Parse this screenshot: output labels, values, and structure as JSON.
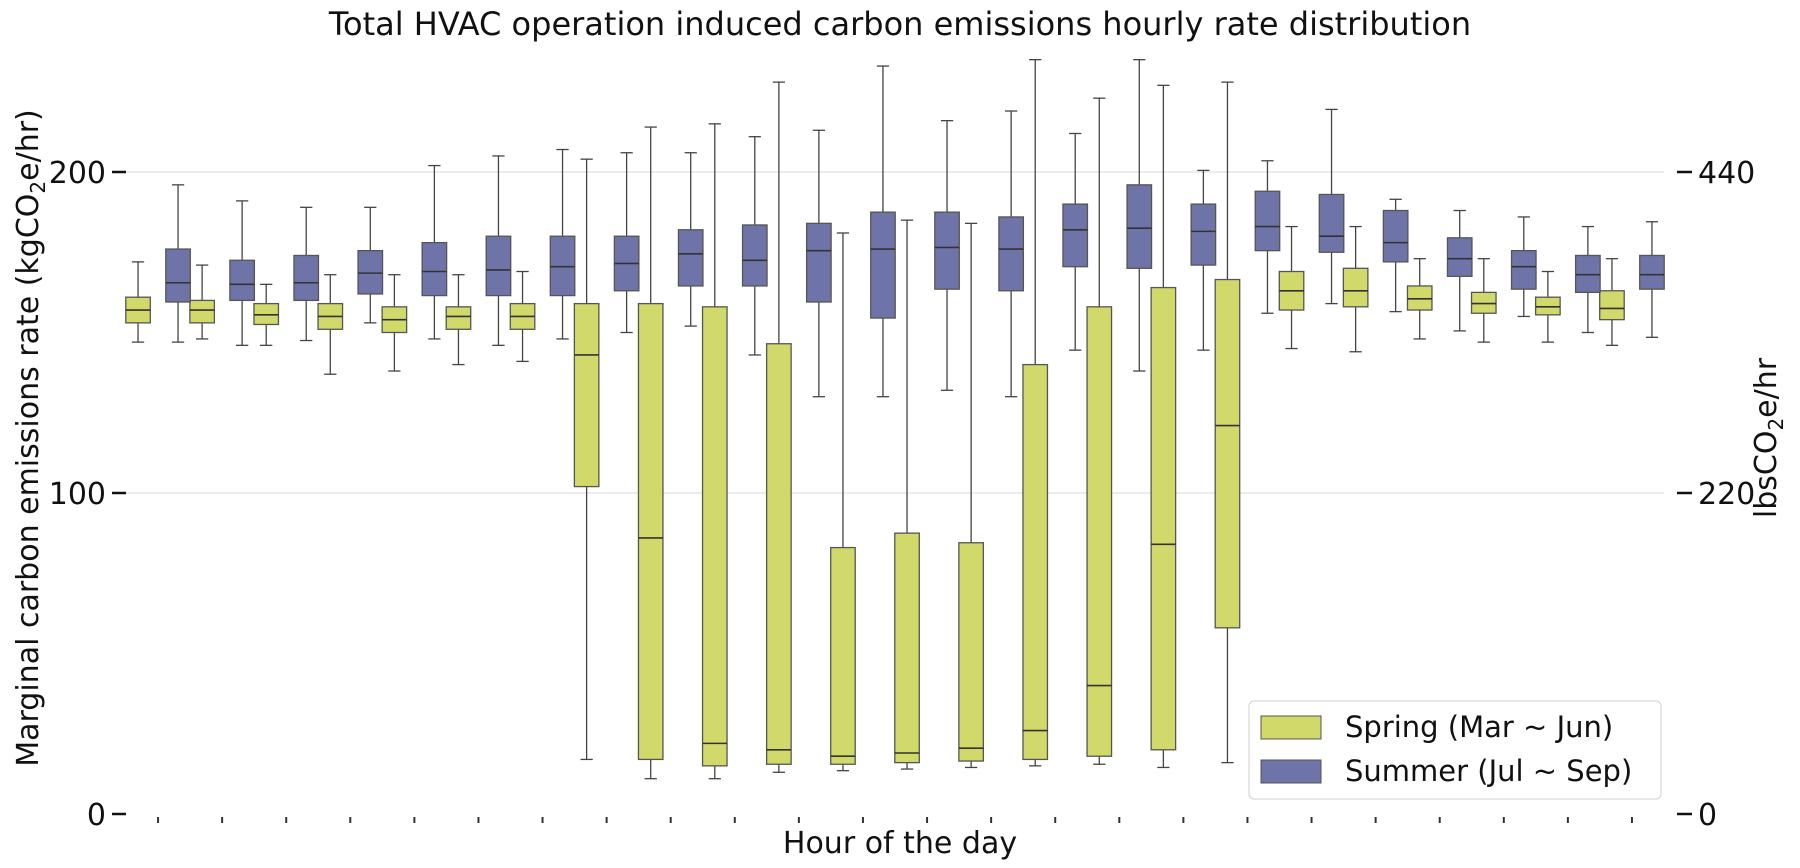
{
  "chart_data": {
    "type": "box",
    "title": "Total HVAC operation induced carbon emissions hourly rate distribution",
    "xlabel": "Hour of the day",
    "ylabel_left": "Marginal carbon emissions rate (kgCO",
    "ylabel_left_sub": "2",
    "ylabel_left_suffix": "e/hr)",
    "ylabel_right": "lbsCO",
    "ylabel_right_sub": "2",
    "ylabel_right_suffix": "e/hr",
    "ylim": [
      0,
      230
    ],
    "yticks_left": [
      0,
      100,
      200
    ],
    "yticks_right": [
      {
        "value": 0,
        "label": "0"
      },
      {
        "value": 100,
        "label": "220"
      },
      {
        "value": 200,
        "label": "440"
      }
    ],
    "hours": 24,
    "grid": true,
    "legend_position": "bottom-right",
    "colors": {
      "spring": "#d2d96b",
      "summer": "#6f74a8",
      "edge": "#555555",
      "grid": "#d9d9d9"
    },
    "series": [
      {
        "name": "Spring (Mar ~ Jun)",
        "key": "spring",
        "boxes": [
          {
            "whislo": 147,
            "q1": 153,
            "med": 157,
            "q3": 161,
            "whishi": 172
          },
          {
            "whislo": 148,
            "q1": 153,
            "med": 157,
            "q3": 160,
            "whishi": 171
          },
          {
            "whislo": 146,
            "q1": 152.5,
            "med": 155.5,
            "q3": 159,
            "whishi": 165
          },
          {
            "whislo": 137,
            "q1": 151,
            "med": 155,
            "q3": 159,
            "whishi": 168
          },
          {
            "whislo": 138,
            "q1": 150,
            "med": 154,
            "q3": 158,
            "whishi": 168
          },
          {
            "whislo": 140,
            "q1": 151,
            "med": 155,
            "q3": 158,
            "whishi": 168
          },
          {
            "whislo": 141,
            "q1": 151,
            "med": 155,
            "q3": 159,
            "whishi": 169
          },
          {
            "whislo": 17,
            "q1": 102,
            "med": 143,
            "q3": 159,
            "whishi": 204
          },
          {
            "whislo": 11,
            "q1": 17,
            "med": 86,
            "q3": 159,
            "whishi": 214
          },
          {
            "whislo": 11,
            "q1": 15,
            "med": 22,
            "q3": 158,
            "whishi": 215
          },
          {
            "whislo": 13,
            "q1": 15.5,
            "med": 20,
            "q3": 146.5,
            "whishi": 228
          },
          {
            "whislo": 13.5,
            "q1": 15.5,
            "med": 18,
            "q3": 83,
            "whishi": 181
          },
          {
            "whislo": 14,
            "q1": 16,
            "med": 19,
            "q3": 87.5,
            "whishi": 185
          },
          {
            "whislo": 14.5,
            "q1": 16.5,
            "med": 20.5,
            "q3": 84.5,
            "whishi": 184
          },
          {
            "whislo": 15,
            "q1": 17,
            "med": 26,
            "q3": 140,
            "whishi": 235
          },
          {
            "whislo": 15.5,
            "q1": 18,
            "med": 40,
            "q3": 158,
            "whishi": 223
          },
          {
            "whislo": 14.5,
            "q1": 20,
            "med": 84,
            "q3": 164,
            "whishi": 227
          },
          {
            "whislo": 16,
            "q1": 58,
            "med": 121,
            "q3": 166.5,
            "whishi": 228
          },
          {
            "whislo": 145,
            "q1": 157,
            "med": 163,
            "q3": 169,
            "whishi": 183
          },
          {
            "whislo": 144,
            "q1": 158,
            "med": 163,
            "q3": 170,
            "whishi": 183
          },
          {
            "whislo": 148,
            "q1": 157,
            "med": 160.5,
            "q3": 164.5,
            "whishi": 173
          },
          {
            "whislo": 147,
            "q1": 156,
            "med": 159,
            "q3": 162.5,
            "whishi": 173
          },
          {
            "whislo": 147,
            "q1": 155.5,
            "med": 158,
            "q3": 161,
            "whishi": 169
          },
          {
            "whislo": 146,
            "q1": 154,
            "med": 157.5,
            "q3": 163,
            "whishi": 173
          }
        ]
      },
      {
        "name": "Summer (Jul ~ Sep)",
        "key": "summer",
        "boxes": [
          {
            "whislo": 147,
            "q1": 159.5,
            "med": 165.5,
            "q3": 176,
            "whishi": 196
          },
          {
            "whislo": 146,
            "q1": 160,
            "med": 165,
            "q3": 172.5,
            "whishi": 191
          },
          {
            "whislo": 147.5,
            "q1": 160,
            "med": 165.5,
            "q3": 174,
            "whishi": 189
          },
          {
            "whislo": 153,
            "q1": 162,
            "med": 168.5,
            "q3": 175.5,
            "whishi": 189
          },
          {
            "whislo": 148,
            "q1": 161.5,
            "med": 169,
            "q3": 178,
            "whishi": 202
          },
          {
            "whislo": 146,
            "q1": 161.5,
            "med": 169.5,
            "q3": 180,
            "whishi": 205
          },
          {
            "whislo": 148,
            "q1": 161.5,
            "med": 170.5,
            "q3": 180,
            "whishi": 207
          },
          {
            "whislo": 150,
            "q1": 163,
            "med": 171.5,
            "q3": 180,
            "whishi": 206
          },
          {
            "whislo": 152,
            "q1": 164.5,
            "med": 174.5,
            "q3": 182,
            "whishi": 206
          },
          {
            "whislo": 143,
            "q1": 164.5,
            "med": 172.5,
            "q3": 183.5,
            "whishi": 211
          },
          {
            "whislo": 130,
            "q1": 159.5,
            "med": 175.5,
            "q3": 184,
            "whishi": 213
          },
          {
            "whislo": 130,
            "q1": 154.5,
            "med": 176,
            "q3": 187.5,
            "whishi": 233
          },
          {
            "whislo": 132,
            "q1": 163.5,
            "med": 176.5,
            "q3": 187.5,
            "whishi": 216
          },
          {
            "whislo": 130,
            "q1": 163,
            "med": 176,
            "q3": 186,
            "whishi": 219
          },
          {
            "whislo": 144.5,
            "q1": 170.5,
            "med": 182,
            "q3": 190,
            "whishi": 212
          },
          {
            "whislo": 138,
            "q1": 170,
            "med": 182.5,
            "q3": 196,
            "whishi": 235
          },
          {
            "whislo": 144.5,
            "q1": 171,
            "med": 181.5,
            "q3": 190,
            "whishi": 200.5
          },
          {
            "whislo": 156,
            "q1": 175.5,
            "med": 183,
            "q3": 194,
            "whishi": 203.5
          },
          {
            "whislo": 159,
            "q1": 175,
            "med": 180,
            "q3": 193,
            "whishi": 219.5
          },
          {
            "whislo": 156.5,
            "q1": 172,
            "med": 178,
            "q3": 188,
            "whishi": 191.5
          },
          {
            "whislo": 150.5,
            "q1": 167.5,
            "med": 173,
            "q3": 179.5,
            "whishi": 188
          },
          {
            "whislo": 155,
            "q1": 163.5,
            "med": 170.5,
            "q3": 175.5,
            "whishi": 186
          },
          {
            "whislo": 150,
            "q1": 162.5,
            "med": 168,
            "q3": 174,
            "whishi": 183
          },
          {
            "whislo": 148.5,
            "q1": 163.5,
            "med": 168,
            "q3": 174,
            "whishi": 184.5
          }
        ]
      }
    ]
  }
}
